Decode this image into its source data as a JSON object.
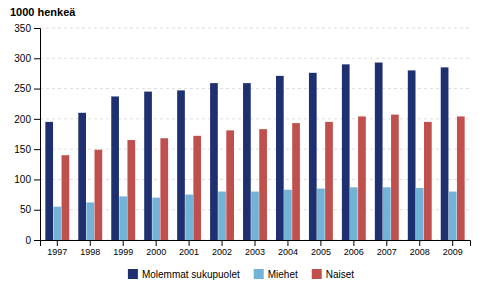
{
  "chart_data": {
    "type": "bar",
    "y_label": "1000 henkeä",
    "categories": [
      "1997",
      "1998",
      "1999",
      "2000",
      "2001",
      "2002",
      "2003",
      "2004",
      "2005",
      "2006",
      "2007",
      "2008",
      "2009"
    ],
    "series": [
      {
        "name": "Molemmat sukupuolet",
        "color": "#1f3070",
        "values": [
          195,
          210,
          237,
          245,
          247,
          259,
          259,
          271,
          276,
          290,
          293,
          280,
          285
        ]
      },
      {
        "name": "Miehet",
        "color": "#73b3d8",
        "values": [
          55,
          62,
          72,
          70,
          75,
          80,
          80,
          83,
          85,
          87,
          87,
          86,
          80
        ]
      },
      {
        "name": "Naiset",
        "color": "#c0504d",
        "values": [
          140,
          149,
          165,
          168,
          172,
          181,
          183,
          193,
          195,
          204,
          207,
          195,
          204
        ]
      }
    ],
    "ylim": [
      0,
      350
    ],
    "yticks": [
      0,
      50,
      100,
      150,
      200,
      250,
      300,
      350
    ],
    "grid": true,
    "legend": "bottom"
  }
}
